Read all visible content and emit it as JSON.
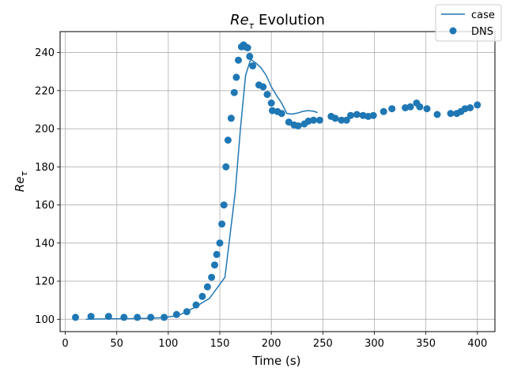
{
  "chart_data": {
    "type": "line",
    "title": {
      "base": "Re",
      "sub": "τ",
      "rest": " Evolution"
    },
    "xlabel": "Time (s)",
    "ylabel": {
      "base": "Re",
      "sub": "τ"
    },
    "xlim": [
      -5,
      417
    ],
    "ylim": [
      93.5,
      251
    ],
    "xticks": [
      0,
      50,
      100,
      150,
      200,
      250,
      300,
      350,
      400
    ],
    "yticks": [
      100,
      120,
      140,
      160,
      180,
      200,
      220,
      240
    ],
    "grid": true,
    "legend_position": "top-right",
    "color": "#1f77b4",
    "series": [
      {
        "name": "case",
        "kind": "line",
        "segments": [
          {
            "x": [
              20,
              40,
              60,
              80,
              95,
              110,
              125,
              140,
              155,
              165,
              170,
              175,
              180,
              185,
              190,
              195,
              200,
              205,
              210,
              215,
              220,
              225,
              230,
              235,
              240,
              245
            ],
            "y": [
              100,
              100.2,
              100.3,
              100.5,
              100.8,
              102,
              106,
              111,
              122,
              167,
              200,
              228,
              236.5,
              234.5,
              232,
              228,
              222,
              217.5,
              213.5,
              208,
              207.7,
              208.2,
              209,
              209.5,
              209.3,
              208.5
            ]
          }
        ]
      },
      {
        "name": "DNS",
        "kind": "scatter",
        "x": [
          10,
          25,
          42,
          57,
          70,
          83,
          96,
          108,
          118,
          127,
          133,
          138,
          142,
          145,
          147,
          150,
          152,
          154,
          156,
          158,
          161,
          164,
          166,
          168,
          171,
          173,
          175,
          177,
          179,
          182,
          188,
          192,
          196,
          200,
          201,
          206,
          210,
          217,
          222,
          226,
          232,
          236,
          241,
          247,
          258,
          262,
          268,
          273,
          277,
          283,
          289,
          294,
          299,
          309,
          317,
          330,
          335,
          341,
          344,
          351,
          361,
          374,
          380,
          384,
          388,
          393,
          400
        ],
        "y": [
          101,
          101.5,
          101.5,
          101,
          101,
          101,
          101,
          102.5,
          104,
          107.5,
          112,
          117,
          122,
          128.5,
          134,
          140,
          150,
          160,
          180,
          194,
          205.5,
          219,
          227,
          236,
          243,
          244,
          243,
          242.5,
          238,
          233,
          223,
          222,
          218,
          213.5,
          209.5,
          209,
          208,
          203.5,
          202,
          201.5,
          202.5,
          204,
          204.5,
          204.5,
          206.5,
          205.5,
          204.5,
          204.5,
          207,
          207.5,
          207,
          206.5,
          207,
          209,
          210.5,
          211,
          211.5,
          213.5,
          211.5,
          210.5,
          207.5,
          208,
          208,
          209,
          210.5,
          211,
          212.5
        ]
      }
    ]
  }
}
